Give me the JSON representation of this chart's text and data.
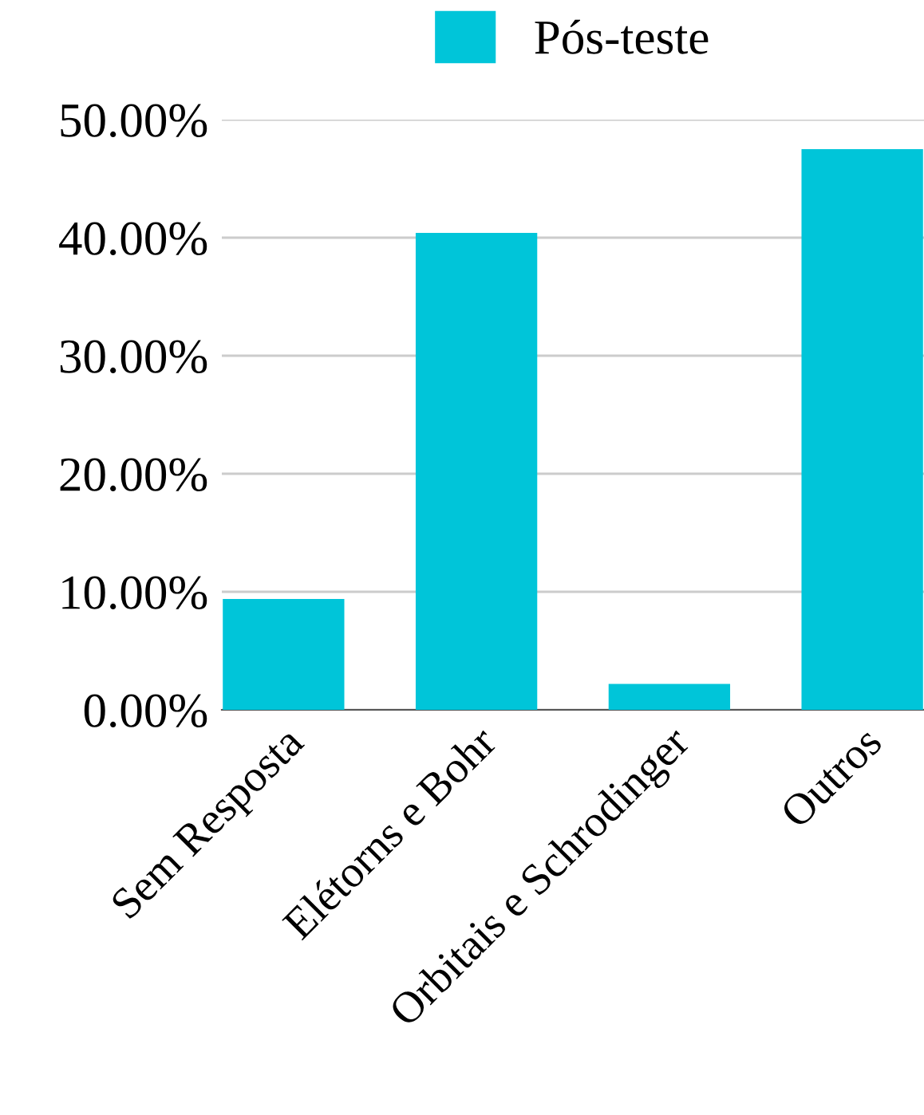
{
  "chart_data": {
    "type": "bar",
    "categories": [
      "Sem Resposta",
      "Elétorns e Bohr",
      "Orbitais e Schrodinger",
      "Outros"
    ],
    "series": [
      {
        "name": "Pós-teste",
        "color": "#00c5d9",
        "values": [
          9.4,
          40.4,
          2.2,
          47.5
        ]
      }
    ],
    "ylim": [
      0,
      50
    ],
    "yticks": [
      {
        "value": 0,
        "label": "0.00%"
      },
      {
        "value": 10,
        "label": "10.00%"
      },
      {
        "value": 20,
        "label": "20.00%"
      },
      {
        "value": 30,
        "label": "30.00%"
      },
      {
        "value": 40,
        "label": "40.00%"
      },
      {
        "value": 50,
        "label": "50.00%"
      }
    ],
    "grid": "y",
    "legend": "top"
  }
}
